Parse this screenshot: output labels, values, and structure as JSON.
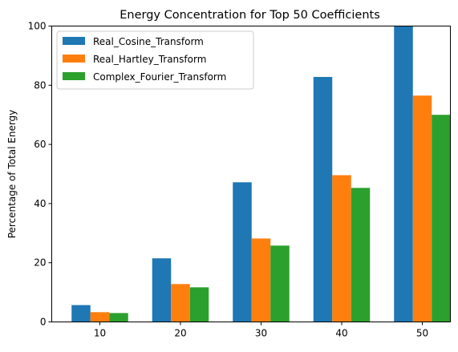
{
  "chart_data": {
    "type": "bar",
    "title": "Energy Concentration for Top 50 Coefficients",
    "xlabel": "",
    "ylabel": "Percentage of Total Energy",
    "categories": [
      "10",
      "20",
      "30",
      "40",
      "50"
    ],
    "ylim": [
      0,
      100
    ],
    "yticks": [
      "0",
      "20",
      "40",
      "60",
      "80",
      "100"
    ],
    "grid": false,
    "legend_position": "top-left",
    "series": [
      {
        "name": "Real_Cosine_Transform",
        "color": "#1f77b4",
        "values": [
          5.7,
          21.5,
          47.2,
          82.8,
          100.0
        ]
      },
      {
        "name": "Real_Hartley_Transform",
        "color": "#ff7f0e",
        "values": [
          3.3,
          12.8,
          28.2,
          49.6,
          76.5
        ]
      },
      {
        "name": "Complex_Fourier_Transform",
        "color": "#2ca02c",
        "values": [
          3.0,
          11.7,
          25.8,
          45.3,
          70.0
        ]
      }
    ]
  }
}
